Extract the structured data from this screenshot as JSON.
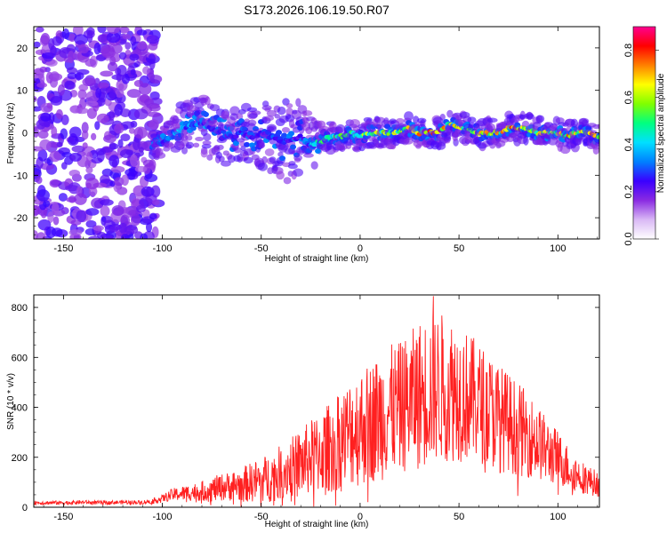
{
  "title": "S173.2026.106.19.50.R07",
  "chart_data": [
    {
      "type": "heatmap",
      "title": "S173.2026.106.19.50.R07",
      "xlabel": "Height of straight line (km)",
      "ylabel": "Frequency (Hz)",
      "xlim": [
        -165,
        121
      ],
      "ylim": [
        -25,
        25
      ],
      "xticks": [
        -150,
        -100,
        -50,
        0,
        50,
        100
      ],
      "yticks": [
        -20,
        -10,
        0,
        10,
        20
      ],
      "colorbar": {
        "label": "Normalized spectral amplitude",
        "range": [
          0,
          0.9
        ],
        "ticks": [
          0.0,
          0.2,
          0.4,
          0.6,
          0.8
        ],
        "colormap": [
          "#ffffff",
          "#d9b8f5",
          "#8a2be2",
          "#3a00ff",
          "#0080ff",
          "#00e0ff",
          "#00ff80",
          "#80ff00",
          "#ffff00",
          "#ff8000",
          "#ff0000",
          "#ff0090"
        ]
      },
      "noise_region_km": [
        -165,
        -105
      ],
      "ridge": {
        "x_km": [
          -105,
          -100,
          -95,
          -90,
          -85,
          -80,
          -75,
          -70,
          -65,
          -60,
          -55,
          -50,
          -45,
          -40,
          -35,
          -30,
          -25,
          -20,
          -15,
          -10,
          -5,
          0,
          5,
          10,
          15,
          20,
          25,
          30,
          35,
          40,
          45,
          50,
          55,
          60,
          65,
          70,
          75,
          80,
          85,
          90,
          95,
          100,
          105,
          110,
          115,
          120
        ],
        "freq_hz": [
          -3,
          -2,
          -1,
          1,
          2,
          2,
          1,
          0,
          -1,
          0,
          -1,
          0,
          -1,
          -2,
          -2,
          -1,
          -3,
          -2,
          -1,
          -1,
          0,
          -1,
          0,
          0,
          0,
          0,
          1,
          0,
          0,
          0,
          2,
          1,
          1,
          0,
          0,
          0,
          1,
          1,
          1,
          0,
          0,
          0,
          -1,
          0,
          0,
          -1
        ],
        "amplitude": [
          0.3,
          0.35,
          0.35,
          0.4,
          0.38,
          0.38,
          0.35,
          0.3,
          0.3,
          0.3,
          0.28,
          0.3,
          0.3,
          0.3,
          0.32,
          0.3,
          0.4,
          0.5,
          0.55,
          0.55,
          0.6,
          0.6,
          0.62,
          0.6,
          0.62,
          0.65,
          0.7,
          0.75,
          0.85,
          0.85,
          0.65,
          0.7,
          0.65,
          0.7,
          0.75,
          0.75,
          0.8,
          0.82,
          0.7,
          0.7,
          0.7,
          0.7,
          0.75,
          0.7,
          0.7,
          0.78
        ],
        "spread_hz": [
          3,
          3,
          4,
          5,
          5,
          6,
          7,
          7,
          6,
          6,
          6,
          7,
          8,
          8,
          9,
          8,
          6,
          4,
          3,
          3,
          3,
          3,
          3,
          3,
          3,
          3,
          3,
          3,
          3,
          3,
          4,
          3,
          3,
          3,
          3,
          3,
          3,
          3,
          3,
          3,
          3,
          3,
          3,
          3,
          3,
          3
        ]
      }
    },
    {
      "type": "line",
      "title": "",
      "xlabel": "Height of straight line (km)",
      "ylabel": "SNR (10 * v/v)",
      "xlim": [
        -165,
        121
      ],
      "ylim": [
        0,
        850
      ],
      "xticks": [
        -150,
        -100,
        -50,
        0,
        50,
        100
      ],
      "yticks": [
        0,
        200,
        400,
        600,
        800
      ],
      "color": "#ff2020",
      "series": [
        {
          "name": "SNR",
          "x": [
            -165,
            -150,
            -140,
            -130,
            -120,
            -110,
            -105,
            -100,
            -95,
            -90,
            -85,
            -80,
            -75,
            -70,
            -65,
            -60,
            -55,
            -50,
            -45,
            -40,
            -35,
            -30,
            -25,
            -20,
            -15,
            -10,
            -5,
            0,
            5,
            10,
            15,
            20,
            25,
            30,
            35,
            40,
            45,
            50,
            55,
            60,
            65,
            70,
            75,
            80,
            85,
            90,
            95,
            100,
            105,
            110,
            115,
            121
          ],
          "baseline": [
            18,
            18,
            20,
            18,
            20,
            20,
            25,
            35,
            50,
            55,
            60,
            65,
            70,
            80,
            85,
            90,
            100,
            110,
            120,
            140,
            160,
            175,
            200,
            220,
            240,
            260,
            300,
            320,
            340,
            360,
            390,
            400,
            420,
            450,
            470,
            480,
            480,
            460,
            440,
            420,
            390,
            360,
            340,
            310,
            290,
            260,
            220,
            200,
            160,
            130,
            110,
            90
          ],
          "spread": [
            8,
            8,
            8,
            8,
            8,
            8,
            10,
            15,
            25,
            30,
            35,
            40,
            50,
            55,
            60,
            70,
            80,
            90,
            100,
            110,
            120,
            140,
            150,
            170,
            180,
            200,
            220,
            240,
            240,
            260,
            260,
            260,
            280,
            300,
            300,
            300,
            300,
            280,
            260,
            240,
            230,
            220,
            200,
            190,
            170,
            150,
            130,
            110,
            90,
            70,
            60,
            50
          ],
          "peak": {
            "x": 37,
            "y": 845
          }
        }
      ]
    }
  ]
}
